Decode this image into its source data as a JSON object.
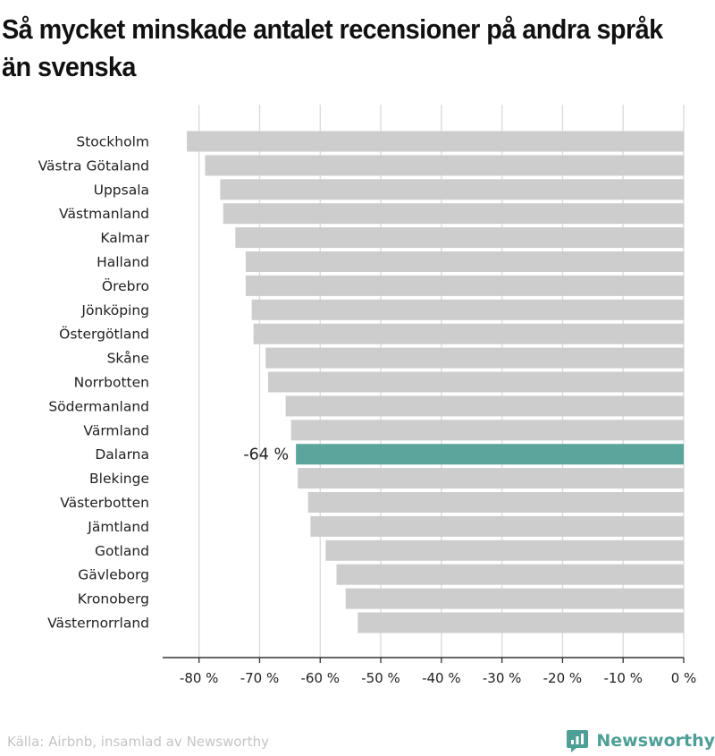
{
  "title": "Så mycket minskade antalet recensioner på andra språk än svenska",
  "source": "Källa: Airbnb, insamlad av Newsworthy",
  "brand": "Newsworthy",
  "colors": {
    "bar": "#cdcdcd",
    "highlight": "#5ba59c",
    "brand": "#4e9f96"
  },
  "chart_data": {
    "type": "bar",
    "orientation": "horizontal",
    "categories": [
      "Stockholm",
      "Västra Götaland",
      "Uppsala",
      "Västmanland",
      "Kalmar",
      "Halland",
      "Örebro",
      "Jönköping",
      "Östergötland",
      "Skåne",
      "Norrbotten",
      "Södermanland",
      "Värmland",
      "Dalarna",
      "Blekinge",
      "Västerbotten",
      "Jämtland",
      "Gotland",
      "Gävleborg",
      "Kronoberg",
      "Västernorrland"
    ],
    "values": [
      -82,
      -79,
      -76.5,
      -76,
      -74,
      -72.3,
      -72.3,
      -71.3,
      -71,
      -69,
      -68.6,
      -65.7,
      -64.8,
      -64,
      -63.7,
      -62,
      -61.6,
      -59.1,
      -57.3,
      -55.8,
      -53.8
    ],
    "highlight": {
      "category": "Dalarna",
      "label": "-64 %"
    },
    "xlim": [
      -86,
      0
    ],
    "ticks": [
      -80,
      -70,
      -60,
      -50,
      -40,
      -30,
      -20,
      -10,
      0
    ],
    "tick_labels": [
      "-80 %",
      "-70 %",
      "-60 %",
      "-50 %",
      "-40 %",
      "-30 %",
      "-20 %",
      "-10 %",
      "0 %"
    ],
    "grid": true
  }
}
